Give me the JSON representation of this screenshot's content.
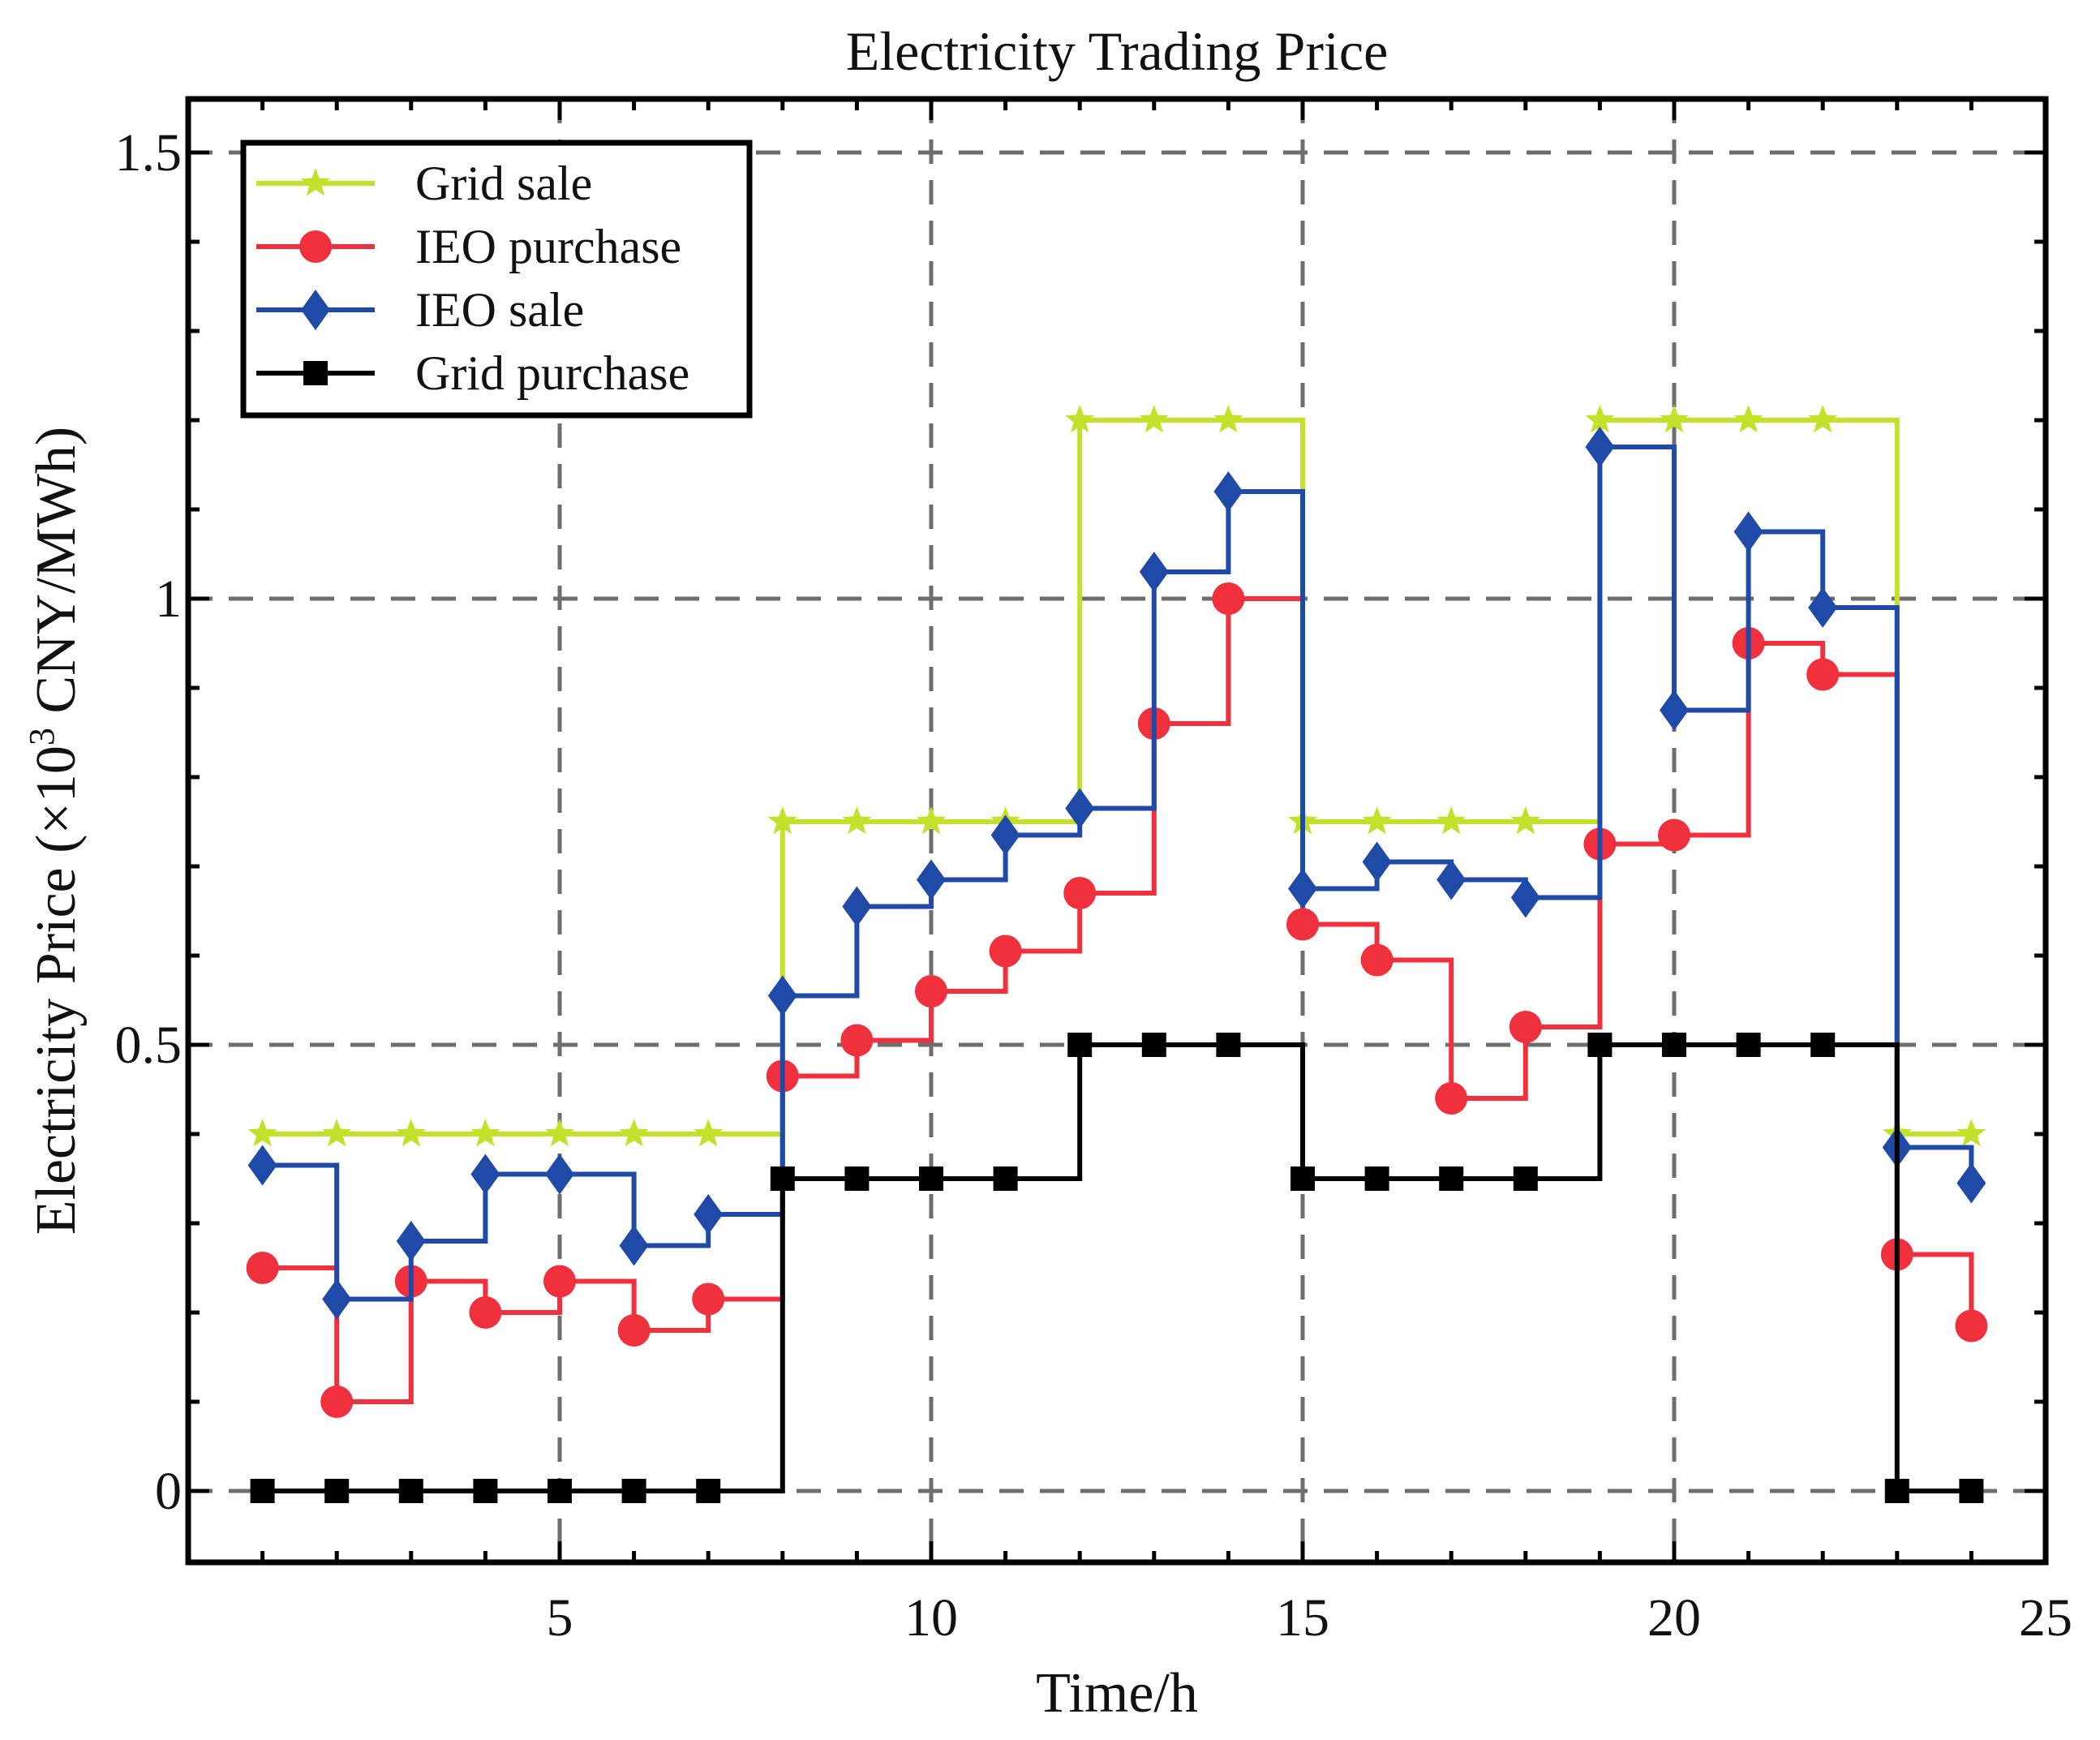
{
  "chart_data": {
    "type": "line",
    "step": "post",
    "title": "Electricity Trading Price",
    "xlabel": "Time/h",
    "ylabel_prefix": "Electricity Price (×10",
    "ylabel_sup": "3",
    "ylabel_suffix": " CNY/MWh)",
    "xlim": [
      0,
      25
    ],
    "ylim": [
      -0.08,
      1.56
    ],
    "xticks": [
      5,
      10,
      15,
      20,
      25
    ],
    "yticks": [
      0,
      0.5,
      1,
      1.5
    ],
    "ytick_labels": [
      "0",
      "0.5",
      "1",
      "1.5"
    ],
    "grid": true,
    "legend_position": "top-left",
    "x": [
      1,
      2,
      3,
      4,
      5,
      6,
      7,
      8,
      9,
      10,
      11,
      12,
      13,
      14,
      15,
      16,
      17,
      18,
      19,
      20,
      21,
      22,
      23,
      24
    ],
    "series": [
      {
        "name": "Grid sale",
        "color": "#c3e02a",
        "marker": "star",
        "values": [
          0.4,
          0.4,
          0.4,
          0.4,
          0.4,
          0.4,
          0.4,
          0.75,
          0.75,
          0.75,
          0.75,
          1.2,
          1.2,
          1.2,
          0.75,
          0.75,
          0.75,
          0.75,
          1.2,
          1.2,
          1.2,
          1.2,
          0.4,
          0.4
        ]
      },
      {
        "name": "IEO purchase",
        "color": "#f0303c",
        "marker": "circle",
        "values": [
          0.25,
          0.1,
          0.235,
          0.2,
          0.235,
          0.18,
          0.215,
          0.465,
          0.505,
          0.56,
          0.605,
          0.67,
          0.86,
          1.0,
          0.635,
          0.595,
          0.44,
          0.52,
          0.725,
          0.735,
          0.95,
          0.915,
          0.265,
          0.185
        ]
      },
      {
        "name": "IEO sale",
        "color": "#1f4aa8",
        "marker": "diamond",
        "values": [
          0.365,
          0.215,
          0.28,
          0.355,
          0.355,
          0.275,
          0.31,
          0.555,
          0.655,
          0.685,
          0.735,
          0.765,
          1.03,
          1.12,
          0.675,
          0.705,
          0.685,
          0.665,
          1.17,
          0.875,
          1.075,
          0.99,
          0.385,
          0.345
        ]
      },
      {
        "name": "Grid purchase",
        "color": "#000000",
        "marker": "square",
        "values": [
          0,
          0,
          0,
          0,
          0,
          0,
          0,
          0.35,
          0.35,
          0.35,
          0.35,
          0.5,
          0.5,
          0.5,
          0.35,
          0.35,
          0.35,
          0.35,
          0.5,
          0.5,
          0.5,
          0.5,
          0,
          0
        ]
      }
    ]
  }
}
